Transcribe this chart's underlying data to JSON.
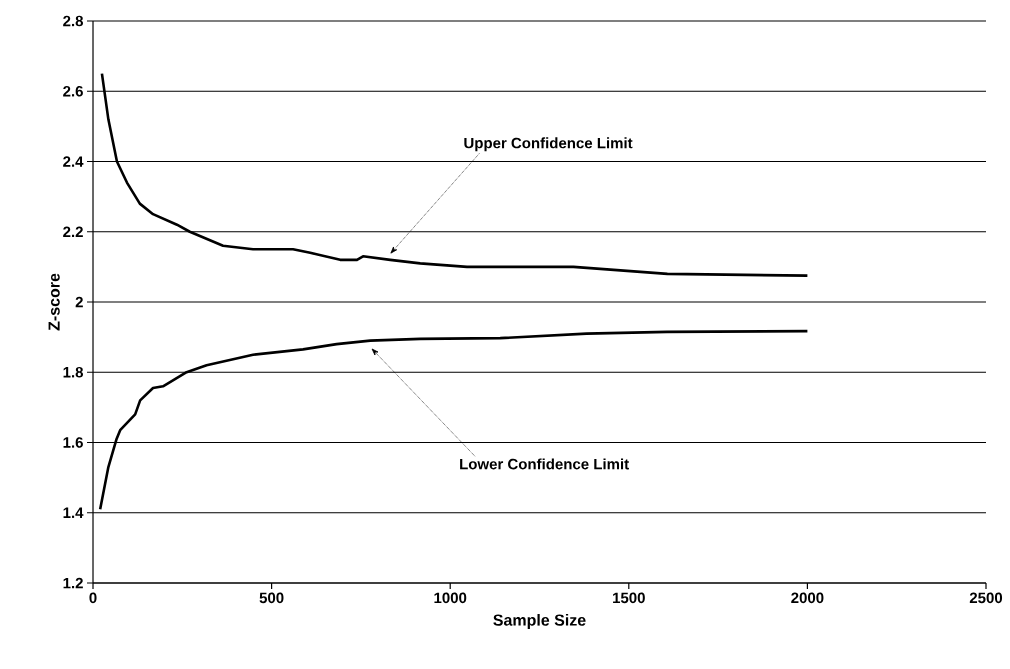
{
  "chart_data": {
    "type": "line",
    "xlabel": "Sample Size",
    "ylabel": "Z-score",
    "xlim": [
      0,
      2500
    ],
    "xticks": [
      0,
      500,
      1000,
      1500,
      2000,
      2500
    ],
    "ylim": [
      1.2,
      2.8
    ],
    "yticks": [
      1.2,
      1.4,
      1.6,
      1.8,
      2,
      2.2,
      2.4,
      2.6,
      2.8
    ],
    "grid": "y",
    "series": [
      {
        "color": "#000000",
        "x": [
          25,
          43,
          67,
          95,
          131,
          168,
          235,
          271,
          364,
          448,
          560,
          608,
          692,
          739,
          756,
          832,
          916,
          1047,
          1345,
          1608,
          2000
        ],
        "values": [
          2.65,
          2.52,
          2.4,
          2.34,
          2.28,
          2.25,
          2.22,
          2.2,
          2.16,
          2.15,
          2.15,
          2.14,
          2.12,
          2.12,
          2.13,
          2.12,
          2.11,
          2.1,
          2.1,
          2.08,
          2.075
        ]
      },
      {
        "color": "#000000",
        "x": [
          20,
          43,
          66,
          76,
          118,
          132,
          168,
          196,
          262,
          318,
          448,
          588,
          682,
          776,
          916,
          1140,
          1382,
          1607,
          2000
        ],
        "values": [
          1.41,
          1.53,
          1.61,
          1.635,
          1.68,
          1.72,
          1.755,
          1.76,
          1.8,
          1.82,
          1.85,
          1.865,
          1.88,
          1.89,
          1.895,
          1.897,
          1.91,
          1.915,
          1.917
        ]
      }
    ],
    "annotations": [
      {
        "text": "Upper Confidence Limit",
        "x": 826,
        "y": 2.13
      },
      {
        "text": "Lower Confidence Limit",
        "x": 773,
        "y": 1.875
      }
    ]
  }
}
